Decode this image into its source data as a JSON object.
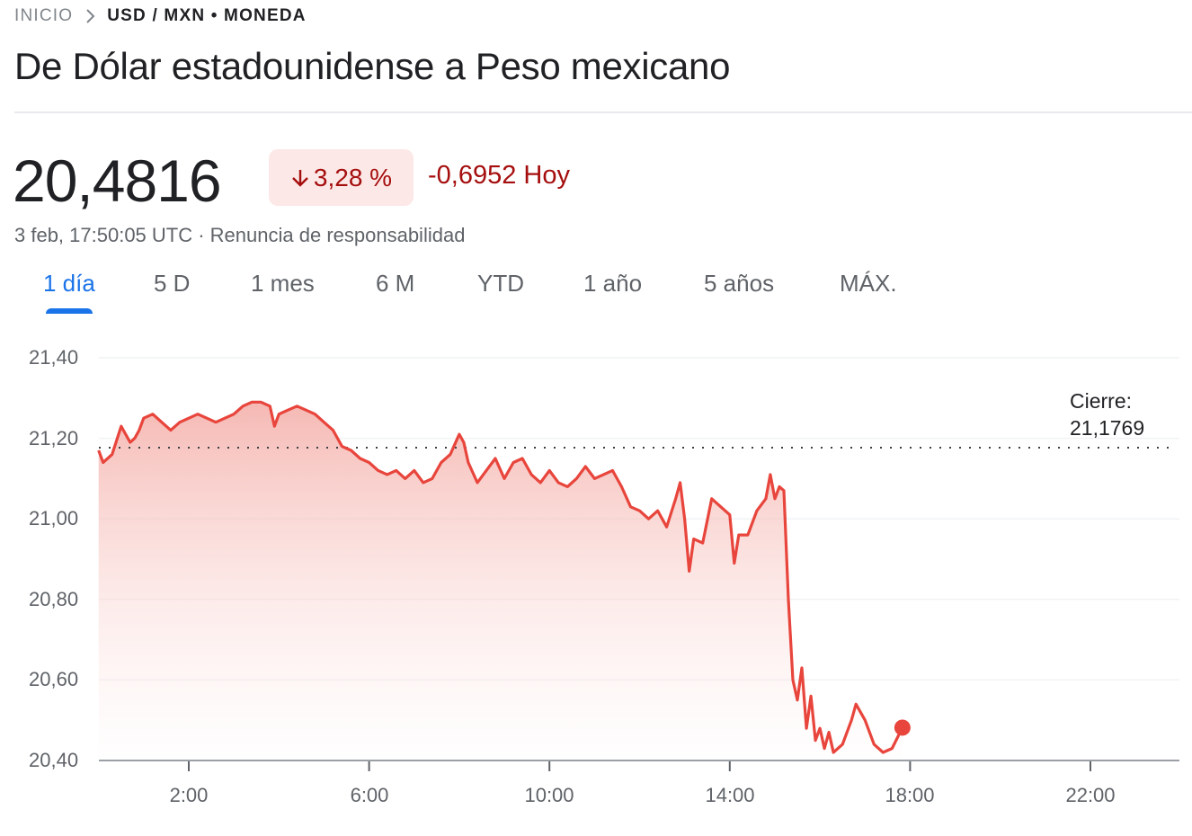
{
  "breadcrumb": {
    "home": "INICIO",
    "separator_icon": "chevron-right-icon",
    "current": "USD / MXN • MONEDA"
  },
  "title": "De Dólar estadounidense a Peso mexicano",
  "quote": {
    "price": "20,4816",
    "change_percent": "3,28 %",
    "change_direction": "down",
    "change_icon": "arrow-down-icon",
    "change_absolute": "-0,6952 Hoy",
    "timestamp": "3 feb, 17:50:05 UTC · Renuncia de responsabilidad",
    "colors": {
      "negative": "#a50e0e",
      "negative_bg": "#fce8e6",
      "line": "#e8453c"
    }
  },
  "tabs": [
    {
      "label": "1 día",
      "active": true
    },
    {
      "label": "5 D",
      "active": false
    },
    {
      "label": "1 mes",
      "active": false
    },
    {
      "label": "6 M",
      "active": false
    },
    {
      "label": "YTD",
      "active": false
    },
    {
      "label": "1 año",
      "active": false
    },
    {
      "label": "5 años",
      "active": false
    },
    {
      "label": "MÁX.",
      "active": false
    }
  ],
  "chart": {
    "close_label": "Cierre:",
    "close_value": "21,1769"
  },
  "chart_data": {
    "type": "area",
    "title": "USD / MXN — 1 día",
    "xlabel": "",
    "ylabel": "",
    "x_ticks": [
      "2:00",
      "6:00",
      "10:00",
      "14:00",
      "18:00",
      "22:00"
    ],
    "y_ticks": [
      "21,40",
      "21,20",
      "21,00",
      "20,80",
      "20,60",
      "20,40"
    ],
    "ylim": [
      20.4,
      21.4
    ],
    "xlim_hours": [
      0,
      24
    ],
    "grid": true,
    "reference_line": {
      "label": "Cierre: 21,1769",
      "value": 21.1769,
      "style": "dotted"
    },
    "last_point": {
      "hour": 17.83,
      "value": 20.4816
    },
    "series": [
      {
        "name": "USD/MXN",
        "x_hours": [
          0.0,
          0.1,
          0.3,
          0.5,
          0.7,
          0.8,
          0.9,
          1.0,
          1.2,
          1.4,
          1.6,
          1.8,
          2.0,
          2.2,
          2.4,
          2.6,
          2.8,
          3.0,
          3.2,
          3.4,
          3.6,
          3.8,
          3.9,
          4.0,
          4.2,
          4.4,
          4.6,
          4.8,
          5.0,
          5.2,
          5.4,
          5.6,
          5.8,
          6.0,
          6.2,
          6.4,
          6.6,
          6.8,
          7.0,
          7.2,
          7.4,
          7.6,
          7.8,
          8.0,
          8.1,
          8.2,
          8.4,
          8.6,
          8.8,
          9.0,
          9.2,
          9.4,
          9.6,
          9.8,
          10.0,
          10.2,
          10.4,
          10.6,
          10.8,
          11.0,
          11.2,
          11.4,
          11.6,
          11.8,
          12.0,
          12.2,
          12.4,
          12.6,
          12.8,
          12.9,
          13.0,
          13.1,
          13.2,
          13.4,
          13.6,
          13.8,
          14.0,
          14.1,
          14.2,
          14.4,
          14.6,
          14.8,
          14.9,
          15.0,
          15.1,
          15.2,
          15.3,
          15.35,
          15.4,
          15.5,
          15.6,
          15.7,
          15.8,
          15.9,
          16.0,
          16.1,
          16.2,
          16.3,
          16.5,
          16.7,
          16.8,
          17.0,
          17.2,
          17.4,
          17.6,
          17.83
        ],
        "values": [
          21.17,
          21.14,
          21.16,
          21.23,
          21.19,
          21.2,
          21.22,
          21.25,
          21.26,
          21.24,
          21.22,
          21.24,
          21.25,
          21.26,
          21.25,
          21.24,
          21.25,
          21.26,
          21.28,
          21.29,
          21.29,
          21.28,
          21.23,
          21.26,
          21.27,
          21.28,
          21.27,
          21.26,
          21.24,
          21.22,
          21.18,
          21.17,
          21.15,
          21.14,
          21.12,
          21.11,
          21.12,
          21.1,
          21.12,
          21.09,
          21.1,
          21.14,
          21.16,
          21.21,
          21.19,
          21.14,
          21.09,
          21.12,
          21.15,
          21.1,
          21.14,
          21.15,
          21.11,
          21.09,
          21.12,
          21.09,
          21.08,
          21.1,
          21.13,
          21.1,
          21.11,
          21.12,
          21.08,
          21.03,
          21.02,
          21.0,
          21.02,
          20.98,
          21.05,
          21.09,
          21.0,
          20.87,
          20.95,
          20.94,
          21.05,
          21.03,
          21.01,
          20.89,
          20.96,
          20.96,
          21.02,
          21.05,
          21.11,
          21.05,
          21.08,
          21.07,
          20.8,
          20.7,
          20.6,
          20.55,
          20.63,
          20.48,
          20.56,
          20.45,
          20.48,
          20.43,
          20.47,
          20.42,
          20.44,
          20.5,
          20.54,
          20.5,
          20.44,
          20.42,
          20.43,
          20.4816
        ]
      }
    ]
  }
}
